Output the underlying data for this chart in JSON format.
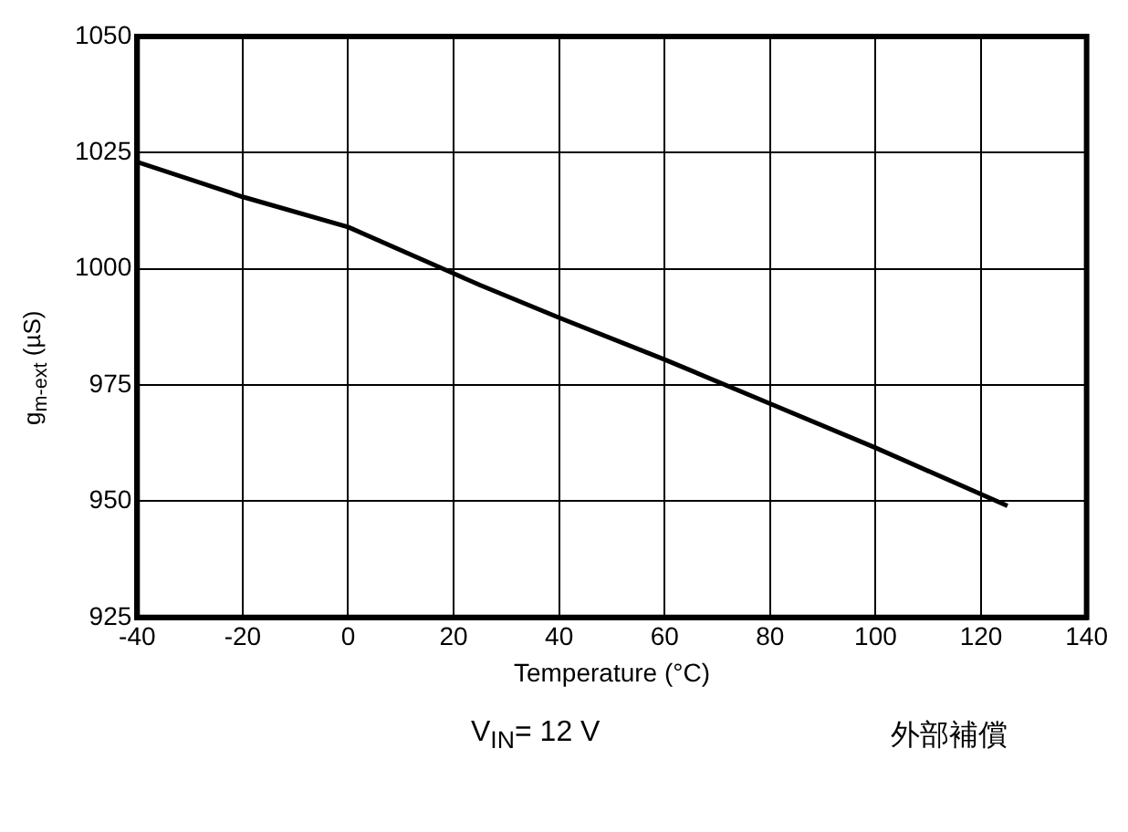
{
  "chart_data": {
    "type": "line",
    "xlabel": "Temperature (°C)",
    "ylabel": "g$_{m-ext}$ (µS)",
    "x": [
      -40,
      -20,
      0,
      20,
      25,
      40,
      60,
      80,
      100,
      125
    ],
    "series": [
      {
        "color": "#000000",
        "values": [
          1023,
          1015.5,
          1009,
          999,
          996.5,
          989.5,
          980.5,
          971,
          961.5,
          949
        ]
      }
    ],
    "xlim": [
      -40,
      140
    ],
    "xticks": [
      -40,
      -20,
      0,
      20,
      40,
      60,
      80,
      100,
      120,
      140
    ],
    "ylim": [
      925,
      1050
    ],
    "yticks": [
      925,
      950,
      975,
      1000,
      1025,
      1050
    ],
    "grid": true,
    "legend": false,
    "marker": "none",
    "line_style": "solid",
    "annotations": [
      "V$_{IN}$= 12 V",
      "外部補償"
    ]
  }
}
